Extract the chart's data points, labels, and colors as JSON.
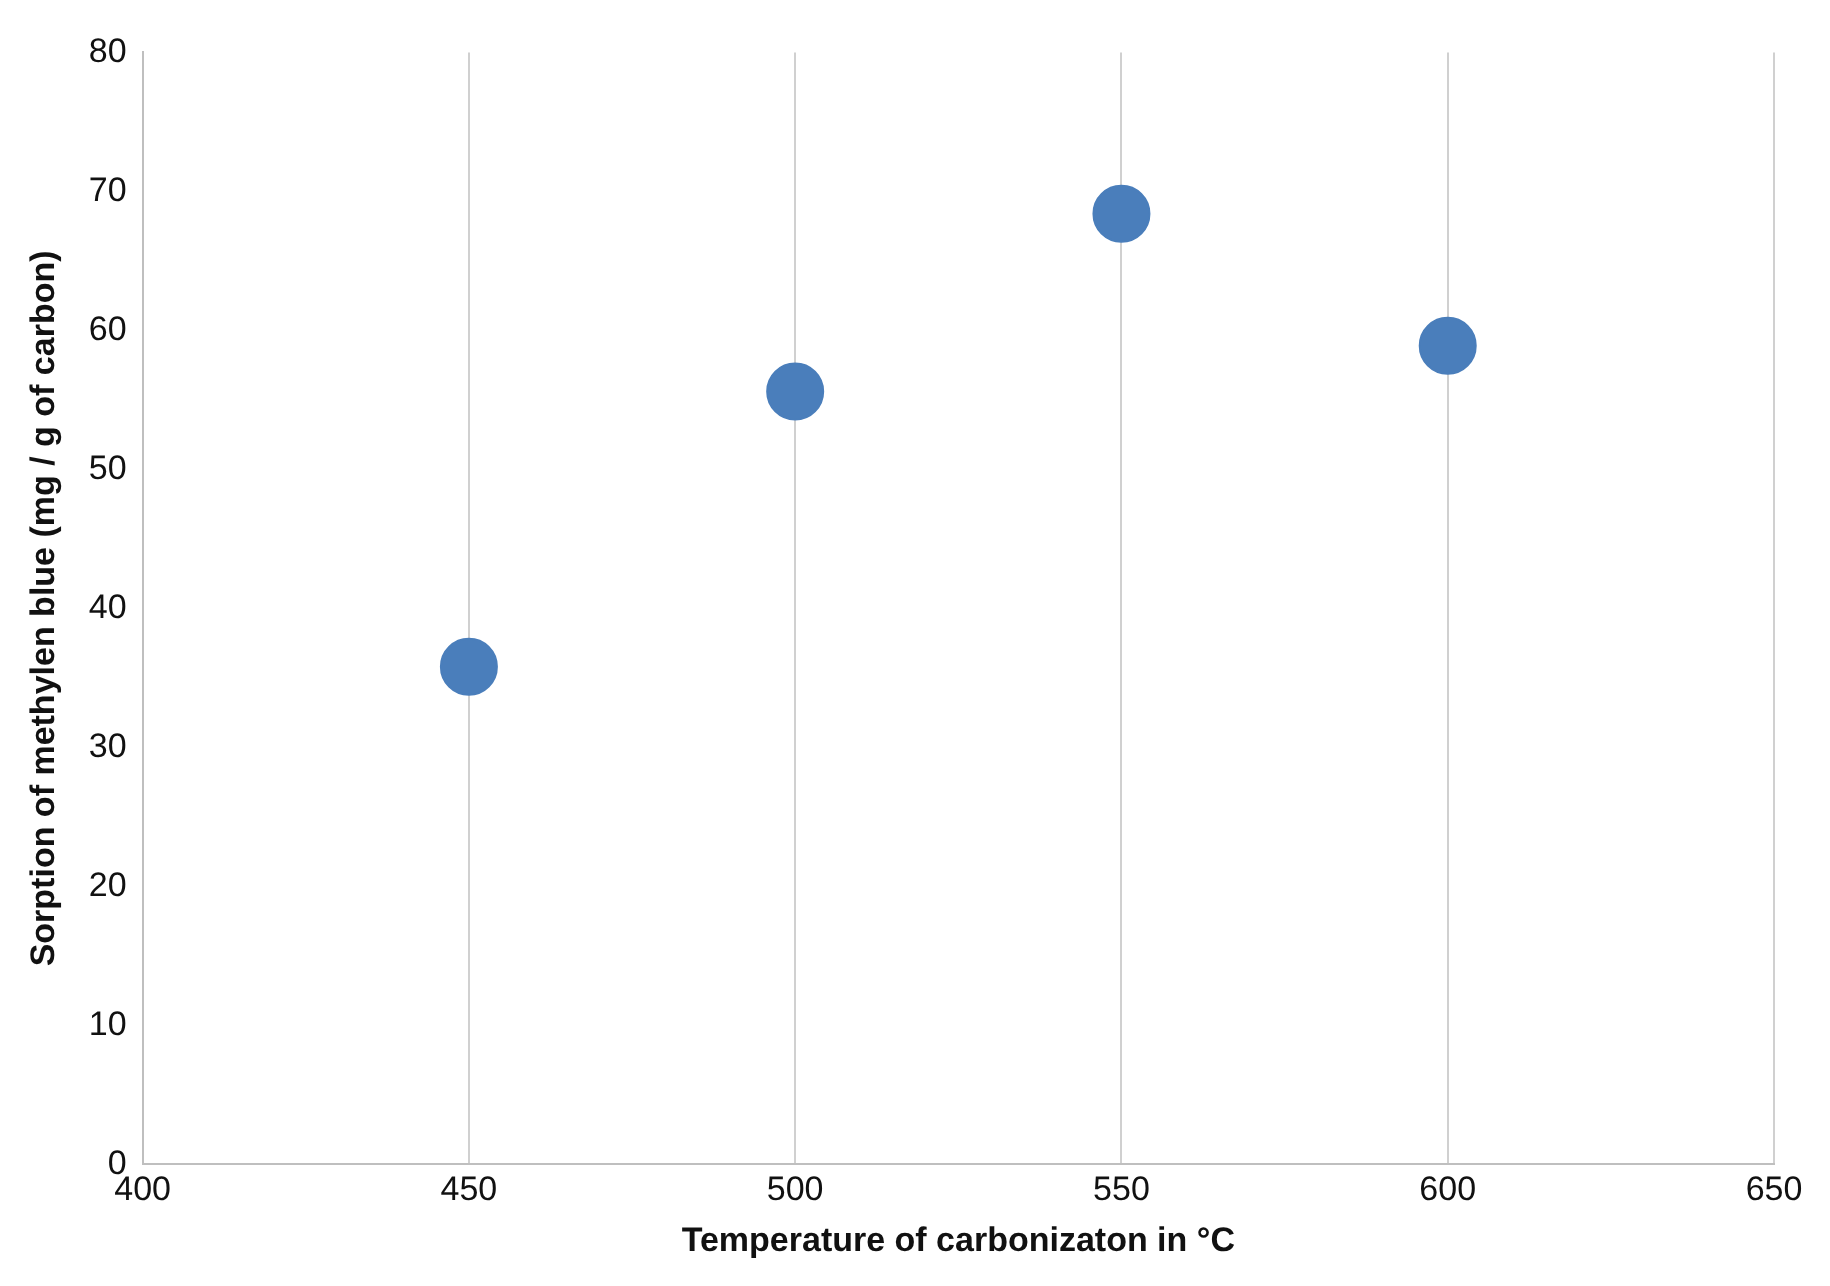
{
  "chart_data": {
    "type": "scatter",
    "xlabel": "Temperature of carbonizaton in °C",
    "ylabel": "Sorption of methylen blue (mg / g of carbon)",
    "x": [
      450,
      500,
      550,
      600
    ],
    "series": [
      {
        "color": "#4a7ebb",
        "values": [
          35.8,
          55.6,
          68.4,
          58.9
        ]
      }
    ],
    "xlim": [
      400,
      650
    ],
    "xticks": [
      400,
      450,
      500,
      550,
      600,
      650
    ],
    "ylim": [
      0,
      80
    ],
    "yticks": [
      0,
      10,
      20,
      30,
      40,
      50,
      60,
      70,
      80
    ],
    "grid": "x",
    "legend": false,
    "marker": "circle"
  }
}
